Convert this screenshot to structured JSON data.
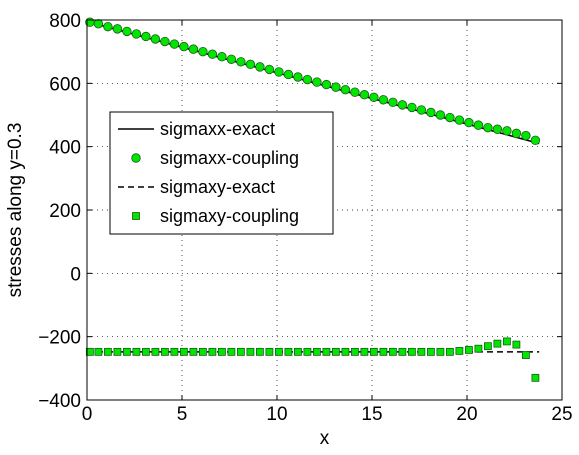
{
  "chart_data": {
    "type": "line",
    "title": "",
    "xlabel": "x",
    "ylabel": "stresses along y=0.3",
    "xlim": [
      0,
      25
    ],
    "ylim": [
      -400,
      800
    ],
    "xticks": [
      0,
      5,
      10,
      15,
      20,
      25
    ],
    "yticks": [
      -400,
      -200,
      0,
      200,
      400,
      600,
      800
    ],
    "grid": "dotted",
    "legend_position": "center-left",
    "series": [
      {
        "name": "sigmaxx-exact",
        "style": "solid-line",
        "color": "#000000",
        "x": [
          0,
          23.8
        ],
        "y": [
          795,
          410
        ]
      },
      {
        "name": "sigmaxx-coupling",
        "style": "circle-marker",
        "color": "#00e600",
        "x": [
          0.15,
          0.6,
          1.1,
          1.6,
          2.1,
          2.6,
          3.1,
          3.6,
          4.1,
          4.6,
          5.1,
          5.6,
          6.1,
          6.6,
          7.1,
          7.6,
          8.1,
          8.6,
          9.1,
          9.6,
          10.1,
          10.6,
          11.1,
          11.6,
          12.1,
          12.6,
          13.1,
          13.6,
          14.1,
          14.6,
          15.1,
          15.6,
          16.1,
          16.6,
          17.1,
          17.6,
          18.1,
          18.6,
          19.1,
          19.6,
          20.1,
          20.6,
          21.1,
          21.6,
          22.1,
          22.6,
          23.1,
          23.6
        ],
        "y": [
          793,
          788,
          779,
          772,
          764,
          756,
          748,
          740,
          732,
          724,
          716,
          708,
          700,
          692,
          684,
          676,
          668,
          660,
          652,
          644,
          636,
          628,
          620,
          612,
          604,
          596,
          588,
          580,
          572,
          564,
          556,
          548,
          540,
          532,
          524,
          516,
          508,
          500,
          492,
          484,
          476,
          468,
          460,
          455,
          450,
          442,
          435,
          420
        ]
      },
      {
        "name": "sigmaxy-exact",
        "style": "dashed-line",
        "color": "#000000",
        "x": [
          0,
          23.8
        ],
        "y": [
          -248,
          -248
        ]
      },
      {
        "name": "sigmaxy-coupling",
        "style": "square-marker",
        "color": "#00e600",
        "x": [
          0.15,
          0.6,
          1.1,
          1.6,
          2.1,
          2.6,
          3.1,
          3.6,
          4.1,
          4.6,
          5.1,
          5.6,
          6.1,
          6.6,
          7.1,
          7.6,
          8.1,
          8.6,
          9.1,
          9.6,
          10.1,
          10.6,
          11.1,
          11.6,
          12.1,
          12.6,
          13.1,
          13.6,
          14.1,
          14.6,
          15.1,
          15.6,
          16.1,
          16.6,
          17.1,
          17.6,
          18.1,
          18.6,
          19.1,
          19.6,
          20.1,
          20.6,
          21.1,
          21.6,
          22.1,
          22.6,
          23.1,
          23.6
        ],
        "y": [
          -248,
          -248,
          -248,
          -248,
          -248,
          -248,
          -248,
          -248,
          -248,
          -248,
          -248,
          -248,
          -248,
          -248,
          -248,
          -248,
          -248,
          -248,
          -248,
          -248,
          -248,
          -248,
          -248,
          -248,
          -248,
          -248,
          -248,
          -248,
          -248,
          -248,
          -248,
          -248,
          -248,
          -248,
          -248,
          -248,
          -248,
          -248,
          -248,
          -245,
          -242,
          -238,
          -230,
          -222,
          -215,
          -225,
          -258,
          -330
        ]
      }
    ]
  }
}
